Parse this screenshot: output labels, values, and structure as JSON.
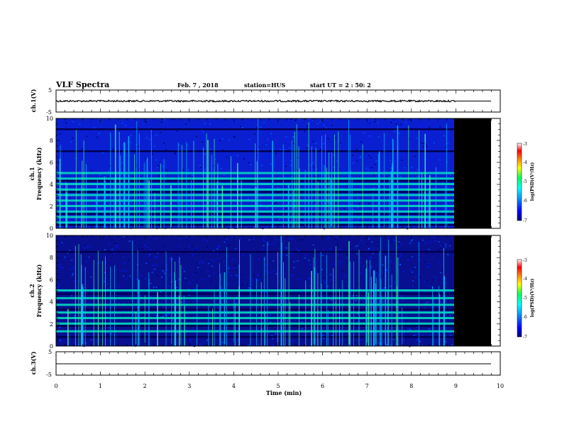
{
  "header": {
    "title": "VLF Spectra",
    "date": "Feb. 7 , 2018",
    "station": "station=HUS",
    "start": "start UT =  2 : 50: 2"
  },
  "axes": {
    "xlabel": "Time (min)",
    "x_ticks": [
      "0",
      "1",
      "2",
      "3",
      "4",
      "5",
      "6",
      "7",
      "8",
      "9",
      "10"
    ],
    "ch1_waveform_ylabel": "ch.1(V)",
    "ch3_waveform_ylabel": "ch.3(V)",
    "waveform_ticks": [
      "5",
      "-5"
    ],
    "spec1_ylabel_line1": "ch.1",
    "spec2_ylabel_line1": "ch.2",
    "spec_ylabel_line2": "Frequency (kHz)",
    "freq_ticks": [
      "0",
      "2",
      "4",
      "6",
      "8",
      "10"
    ],
    "colorbar_label": "log(PSD)(V²/Hz)",
    "colorbar_ticks": [
      "-3",
      "-4",
      "-5",
      "-6",
      "-7"
    ]
  },
  "chart_data": [
    {
      "type": "line",
      "title": "",
      "ylabel": "ch.1(V)",
      "xlim": [
        0,
        10
      ],
      "ylim": [
        -5,
        5
      ],
      "series": [
        {
          "x": [
            0,
            9,
            9,
            9.8
          ],
          "y": [
            0,
            0,
            0,
            0
          ],
          "note_data_end_min": 9
        }
      ]
    },
    {
      "type": "heatmap",
      "ylabel": "ch.1 Frequency (kHz)",
      "xlim": [
        0,
        10
      ],
      "ylim": [
        0,
        10
      ],
      "data_end_min": 9,
      "color_range": [
        -7,
        -3
      ],
      "colorbar_label": "log(PSD)(V²/Hz)",
      "bright_bands_khz": [
        0.5,
        1.0,
        1.5,
        2.0,
        2.5,
        3.0,
        3.5,
        4.0,
        4.5,
        5.0
      ],
      "dark_bands_khz": [
        0.3,
        1.3,
        3.3,
        4.3,
        7.0,
        9.0
      ]
    },
    {
      "type": "heatmap",
      "ylabel": "ch.2 Frequency (kHz)",
      "xlim": [
        0,
        10
      ],
      "ylim": [
        0,
        10
      ],
      "data_end_min": 9,
      "color_range": [
        -7,
        -3
      ],
      "colorbar_label": "log(PSD)(V²/Hz)",
      "bright_bands_khz": [
        1.3,
        2.0,
        2.5,
        3.0,
        3.7,
        4.3,
        5.0
      ],
      "dark_bands_khz": [
        0.8,
        1.8,
        3.3,
        4.7,
        8.5
      ]
    },
    {
      "type": "line",
      "ylabel": "ch.3(V)",
      "xlim": [
        0,
        10
      ],
      "ylim": [
        -5,
        5
      ],
      "series": [
        {
          "x": [
            0,
            9.8
          ],
          "y": [
            0,
            0
          ]
        }
      ]
    }
  ]
}
